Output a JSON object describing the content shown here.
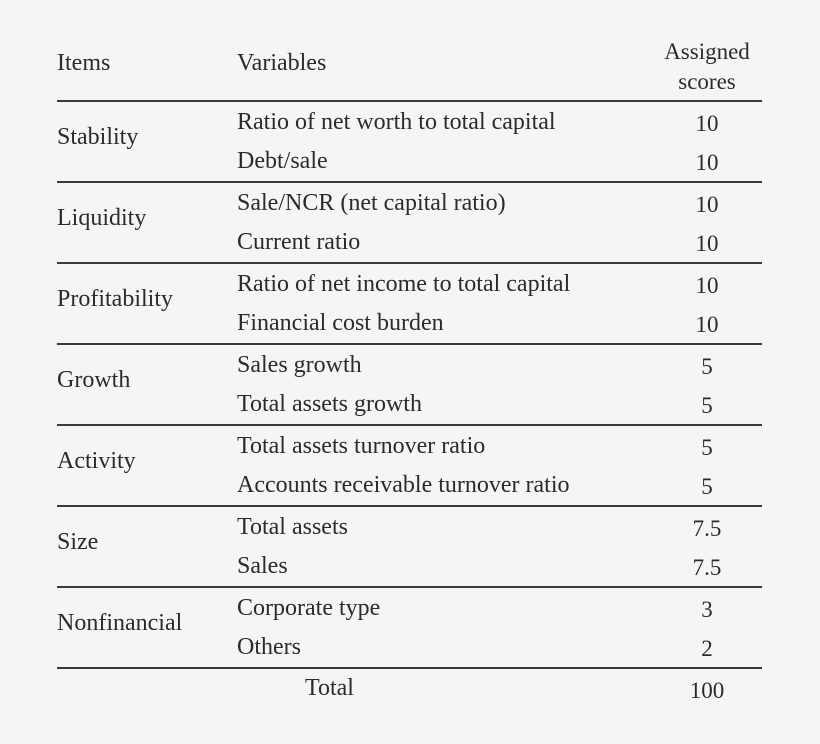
{
  "table": {
    "headers": {
      "items": "Items",
      "variables": "Variables",
      "scores_line1": "Assigned",
      "scores_line2": "scores"
    },
    "groups": [
      {
        "item": "Stability",
        "rows": [
          {
            "variable": "Ratio of net worth to total capital",
            "score": "10"
          },
          {
            "variable": "Debt/sale",
            "score": "10"
          }
        ]
      },
      {
        "item": "Liquidity",
        "rows": [
          {
            "variable": "Sale/NCR (net capital ratio)",
            "score": "10"
          },
          {
            "variable": "Current ratio",
            "score": "10"
          }
        ]
      },
      {
        "item": "Profitability",
        "rows": [
          {
            "variable": "Ratio of net income to total capital",
            "score": "10"
          },
          {
            "variable": "Financial cost burden",
            "score": "10"
          }
        ]
      },
      {
        "item": "Growth",
        "rows": [
          {
            "variable": "Sales growth",
            "score": "5"
          },
          {
            "variable": "Total assets growth",
            "score": "5"
          }
        ]
      },
      {
        "item": "Activity",
        "rows": [
          {
            "variable": "Total assets turnover ratio",
            "score": "5"
          },
          {
            "variable": "Accounts receivable turnover ratio",
            "score": "5"
          }
        ]
      },
      {
        "item": "Size",
        "rows": [
          {
            "variable": "Total assets",
            "score": "7.5"
          },
          {
            "variable": "Sales",
            "score": "7.5"
          }
        ]
      },
      {
        "item": "Nonfinancial",
        "rows": [
          {
            "variable": "Corporate type",
            "score": "3"
          },
          {
            "variable": "Others",
            "score": "2"
          }
        ]
      }
    ],
    "total": {
      "label": "Total",
      "score": "100"
    }
  }
}
